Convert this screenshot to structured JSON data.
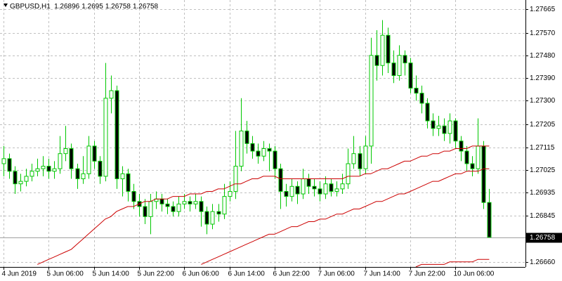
{
  "chart_data": {
    "type": "candlestick",
    "title": "GBPUSD,H1",
    "categories": [
      "4 Jun 2019",
      null,
      null,
      null,
      null,
      null,
      null,
      null,
      "5 Jun 06:00",
      null,
      null,
      null,
      null,
      null,
      null,
      null,
      "5 Jun 14:00",
      null,
      null,
      null,
      null,
      null,
      null,
      null,
      "5 Jun 22:00",
      null,
      null,
      null,
      null,
      null,
      null,
      null,
      "6 Jun 06:00",
      null,
      null,
      null,
      null,
      null,
      null,
      null,
      "6 Jun 14:00",
      null,
      null,
      null,
      null,
      null,
      null,
      null,
      "6 Jun 22:00",
      null,
      null,
      null,
      null,
      null,
      null,
      null,
      "7 Jun 06:00",
      null,
      null,
      null,
      null,
      null,
      null,
      null,
      "7 Jun 14:00",
      null,
      null,
      null,
      null,
      null,
      null,
      null,
      "7 Jun 22:00",
      null,
      null,
      null,
      null,
      null,
      null,
      null,
      "10 Jun 06:00",
      null,
      null,
      null,
      null,
      null,
      null
    ],
    "open": [
      1.2705,
      1.2707,
      1.2702,
      1.2697,
      1.2698,
      1.27,
      1.2702,
      1.2703,
      1.2704,
      1.2702,
      1.2703,
      1.2709,
      1.2711,
      1.2703,
      1.2699,
      1.2701,
      1.2712,
      1.2706,
      1.27,
      1.2731,
      1.2734,
      1.2699,
      1.2701,
      1.2694,
      1.269,
      1.2688,
      1.2684,
      1.269,
      1.2691,
      1.2689,
      1.2688,
      1.2686,
      1.2689,
      1.269,
      1.2689,
      1.269,
      1.2686,
      1.2681,
      1.2686,
      1.2685,
      1.2692,
      1.2694,
      1.2704,
      1.2718,
      1.2713,
      1.271,
      1.2708,
      1.2711,
      1.271,
      1.2703,
      1.2694,
      1.2692,
      1.2696,
      1.2693,
      1.2699,
      1.2696,
      1.2695,
      1.2693,
      1.2697,
      1.2694,
      1.2695,
      1.2697,
      1.2705,
      1.2709,
      1.2703,
      1.2712,
      1.2748,
      1.2744,
      1.2756,
      1.2745,
      1.274,
      1.2748,
      1.2745,
      1.2735,
      1.2733,
      1.2729,
      1.2722,
      1.2719,
      1.272,
      1.2717,
      1.2722,
      1.2714,
      1.271,
      1.2705,
      1.2703,
      1.2712,
      1.26896
    ],
    "high": [
      1.2712,
      1.2709,
      1.2704,
      1.2701,
      1.2703,
      1.2705,
      1.2707,
      1.2708,
      1.2707,
      1.2706,
      1.2716,
      1.272,
      1.2713,
      1.2705,
      1.2708,
      1.2716,
      1.2714,
      1.2708,
      1.2745,
      1.274,
      1.2736,
      1.2704,
      1.2703,
      1.2697,
      1.2693,
      1.2691,
      1.2693,
      1.2694,
      1.2693,
      1.2691,
      1.269,
      1.2692,
      1.2693,
      1.2692,
      1.2693,
      1.2692,
      1.2688,
      1.2689,
      1.2689,
      1.2697,
      1.2698,
      1.2718,
      1.2731,
      1.2722,
      1.2716,
      1.2713,
      1.2714,
      1.2713,
      1.2712,
      1.2705,
      1.2697,
      1.2699,
      1.2698,
      1.2703,
      1.2701,
      1.2699,
      1.2698,
      1.27,
      1.2699,
      1.2698,
      1.2701,
      1.2711,
      1.2716,
      1.2712,
      1.2716,
      1.2755,
      1.2758,
      1.2762,
      1.2759,
      1.275,
      1.2752,
      1.275,
      1.2747,
      1.274,
      1.2736,
      1.2731,
      1.2725,
      1.2724,
      1.2723,
      1.2725,
      1.2723,
      1.2716,
      1.2712,
      1.2708,
      1.2723,
      1.2714,
      1.2695
    ],
    "low": [
      1.27,
      1.2699,
      1.2693,
      1.2694,
      1.2696,
      1.2698,
      1.27,
      1.27,
      1.2699,
      1.2699,
      1.2701,
      1.2706,
      1.2699,
      1.2695,
      1.2697,
      1.2699,
      1.2703,
      1.2697,
      1.2698,
      1.2725,
      1.2695,
      1.2692,
      1.269,
      1.2687,
      1.2684,
      1.2681,
      1.2677,
      1.2687,
      1.2686,
      1.2685,
      1.2684,
      1.2684,
      1.2687,
      1.2686,
      1.2687,
      1.268,
      1.2677,
      1.2679,
      1.2682,
      1.2683,
      1.269,
      1.2691,
      1.2702,
      1.2709,
      1.2707,
      1.2705,
      1.2706,
      1.2702,
      1.2699,
      1.2687,
      1.2688,
      1.269,
      1.2689,
      1.2691,
      1.2693,
      1.2692,
      1.269,
      1.2691,
      1.2692,
      1.2692,
      1.2693,
      1.2695,
      1.2703,
      1.27,
      1.2701,
      1.2705,
      1.2738,
      1.274,
      1.2741,
      1.2737,
      1.2738,
      1.274,
      1.2733,
      1.273,
      1.2725,
      1.2719,
      1.2716,
      1.2716,
      1.2714,
      1.2713,
      1.2711,
      1.2706,
      1.2702,
      1.27,
      1.2701,
      1.2687,
      1.26758
    ],
    "close": [
      1.2707,
      1.2702,
      1.2697,
      1.2698,
      1.27,
      1.2702,
      1.2703,
      1.2704,
      1.2702,
      1.2703,
      1.2709,
      1.2711,
      1.2703,
      1.2699,
      1.2701,
      1.2712,
      1.2706,
      1.27,
      1.2731,
      1.2734,
      1.2699,
      1.2701,
      1.2694,
      1.269,
      1.2688,
      1.2684,
      1.269,
      1.2691,
      1.2689,
      1.2688,
      1.2686,
      1.2689,
      1.269,
      1.2689,
      1.269,
      1.2686,
      1.2681,
      1.2686,
      1.2685,
      1.2692,
      1.2694,
      1.2704,
      1.2718,
      1.2713,
      1.271,
      1.2708,
      1.2711,
      1.271,
      1.2703,
      1.2694,
      1.2692,
      1.2696,
      1.2693,
      1.2699,
      1.2696,
      1.2695,
      1.2693,
      1.2697,
      1.2694,
      1.2695,
      1.2697,
      1.2705,
      1.2709,
      1.2703,
      1.2712,
      1.2748,
      1.2744,
      1.2756,
      1.2745,
      1.274,
      1.2748,
      1.2745,
      1.2735,
      1.2733,
      1.2729,
      1.2722,
      1.2719,
      1.272,
      1.2717,
      1.2722,
      1.2714,
      1.271,
      1.2705,
      1.2703,
      1.2712,
      1.26896,
      1.26758
    ],
    "up_color": "#00c800",
    "down_color": "#000000",
    "lines": [
      {
        "color": "#cc0000",
        "values": [
          null,
          null,
          null,
          null,
          null,
          null,
          1.2665,
          1.2666,
          1.2667,
          1.2668,
          1.2669,
          1.267,
          1.2671,
          1.2673,
          1.2675,
          1.2677,
          1.2679,
          1.2681,
          1.2683,
          1.2684,
          1.2686,
          1.2687,
          1.2688,
          1.2688,
          1.2689,
          1.269,
          1.269,
          1.2691,
          1.2691,
          1.2691,
          1.2692,
          1.2692,
          1.2692,
          1.2693,
          1.2693,
          1.2693,
          1.2694,
          1.2694,
          1.2695,
          1.2695,
          1.2696,
          1.2697,
          1.2697,
          1.2698,
          1.2699,
          1.2699,
          1.27,
          1.27,
          1.27,
          1.2699,
          1.2699,
          1.2699,
          1.2699,
          1.2699,
          1.2699,
          1.2699,
          1.2699,
          1.2699,
          1.2699,
          1.2699,
          1.2699,
          1.27,
          1.27,
          1.27,
          1.2701,
          1.2701,
          1.2702,
          1.2703,
          1.2703,
          1.2704,
          1.2705,
          1.2706,
          1.2706,
          1.2707,
          1.2708,
          1.2708,
          1.2709,
          1.2709,
          1.271,
          1.271,
          1.2711,
          1.2711,
          1.2711,
          1.2712,
          1.2712,
          1.2712,
          1.2712
        ]
      },
      {
        "color": "#cc0000",
        "values": [
          null,
          null,
          null,
          null,
          null,
          null,
          null,
          null,
          null,
          null,
          null,
          null,
          null,
          null,
          null,
          null,
          null,
          null,
          null,
          null,
          null,
          null,
          null,
          null,
          null,
          null,
          null,
          null,
          null,
          null,
          null,
          null,
          null,
          null,
          null,
          1.2665,
          1.2666,
          1.2667,
          1.2668,
          1.2669,
          1.267,
          1.2671,
          1.2672,
          1.2673,
          1.2674,
          1.2675,
          1.2676,
          1.2677,
          1.2677,
          1.2678,
          1.2679,
          1.268,
          1.268,
          1.2681,
          1.2682,
          1.2682,
          1.2683,
          1.2683,
          1.2684,
          1.2685,
          1.2685,
          1.2686,
          1.2687,
          1.2687,
          1.2688,
          1.2689,
          1.269,
          1.269,
          1.2691,
          1.2692,
          1.2693,
          1.2693,
          1.2694,
          1.2695,
          1.2696,
          1.2697,
          1.2698,
          1.2698,
          1.2699,
          1.27,
          1.2701,
          1.2701,
          1.2702,
          1.2702,
          1.2702,
          1.2703,
          1.2703
        ]
      },
      {
        "color": "#cc0000",
        "values": [
          null,
          null,
          null,
          null,
          null,
          null,
          null,
          null,
          null,
          null,
          null,
          null,
          null,
          null,
          null,
          null,
          null,
          null,
          null,
          null,
          null,
          null,
          null,
          null,
          null,
          null,
          null,
          null,
          null,
          null,
          null,
          null,
          null,
          null,
          null,
          null,
          null,
          null,
          null,
          null,
          null,
          null,
          null,
          null,
          null,
          null,
          null,
          null,
          null,
          null,
          null,
          null,
          null,
          null,
          null,
          null,
          null,
          null,
          null,
          null,
          null,
          null,
          null,
          null,
          null,
          null,
          null,
          null,
          null,
          null,
          null,
          null,
          null,
          1.2664,
          1.2665,
          1.2665,
          1.2665,
          1.2665,
          1.2665,
          1.2666,
          1.2666,
          1.2666,
          1.2666,
          1.2666,
          1.2667,
          1.2667,
          1.2667
        ]
      }
    ],
    "ylim": [
      1.2664,
      1.277
    ],
    "yticks": [
      1.27665,
      {
        "value": 1.2757,
        "label": "1.27570"
      },
      {
        "value": 1.2748,
        "label": "1.27480"
      },
      {
        "value": 1.2739,
        "label": "1.27390"
      },
      {
        "value": 1.273,
        "label": "1.27300"
      },
      1.27205,
      1.27115,
      1.27025,
      1.26935,
      1.26845,
      {
        "value": 1.2666,
        "label": "1.26660"
      }
    ],
    "grid": true
  }
}
